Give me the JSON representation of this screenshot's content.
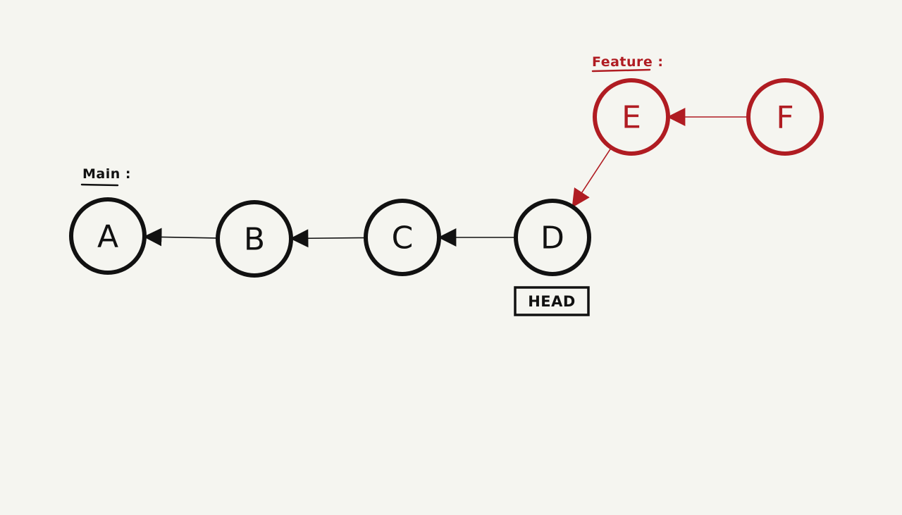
{
  "branches": {
    "main": {
      "label": "Main :",
      "color": "#111111"
    },
    "feature": {
      "label": "Feature :",
      "color": "#b01c22"
    }
  },
  "head": {
    "label": "HEAD",
    "points_to": "D"
  },
  "commits": [
    {
      "id": "A",
      "label": "A",
      "branch": "main"
    },
    {
      "id": "B",
      "label": "B",
      "branch": "main"
    },
    {
      "id": "C",
      "label": "C",
      "branch": "main"
    },
    {
      "id": "D",
      "label": "D",
      "branch": "main"
    },
    {
      "id": "E",
      "label": "E",
      "branch": "feature"
    },
    {
      "id": "F",
      "label": "F",
      "branch": "feature"
    }
  ],
  "edges": [
    {
      "from": "B",
      "to": "A",
      "branch": "main"
    },
    {
      "from": "C",
      "to": "B",
      "branch": "main"
    },
    {
      "from": "D",
      "to": "C",
      "branch": "main"
    },
    {
      "from": "E",
      "to": "D",
      "branch": "feature"
    },
    {
      "from": "F",
      "to": "E",
      "branch": "feature"
    }
  ]
}
